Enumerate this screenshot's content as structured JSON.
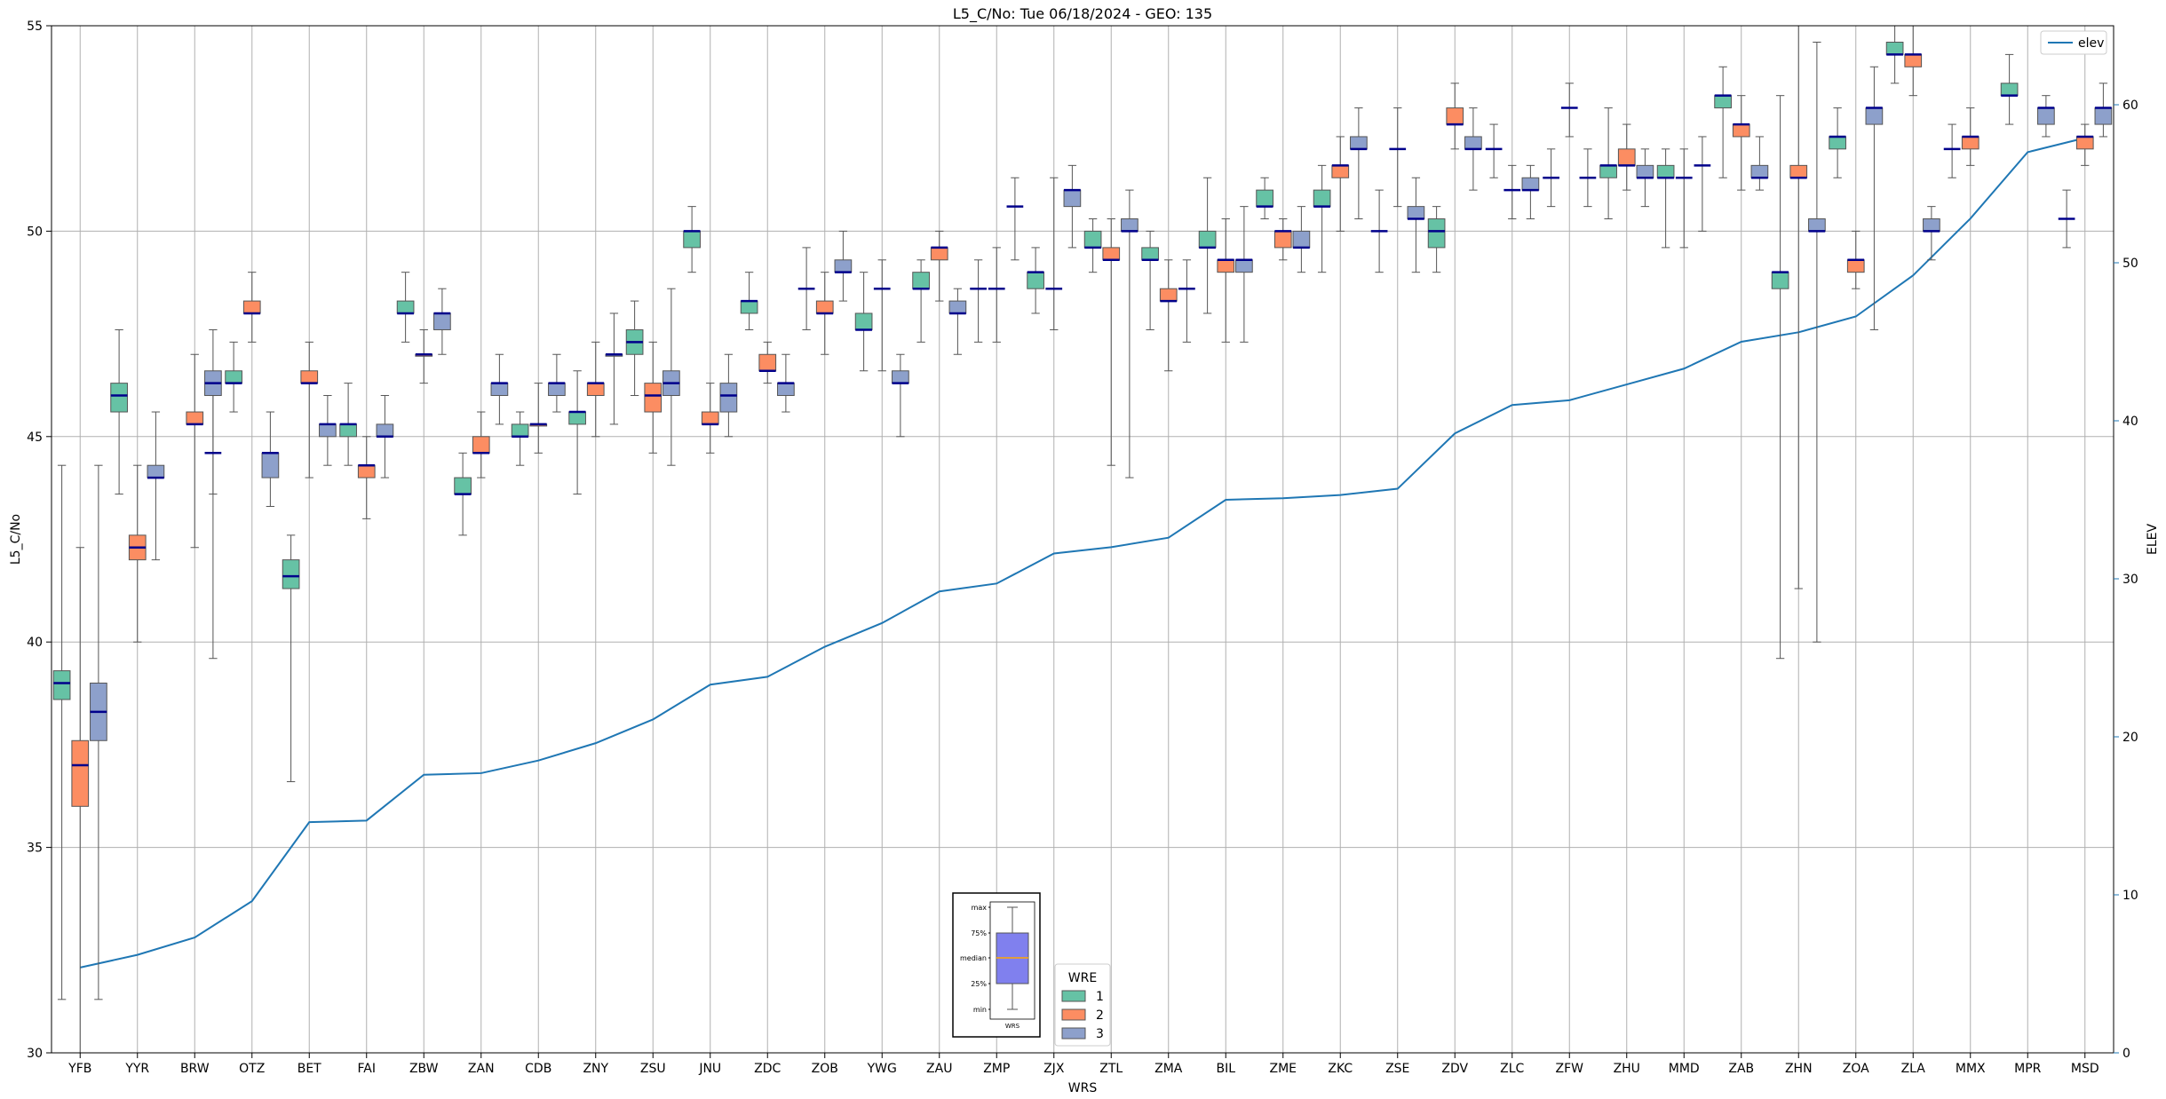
{
  "chart_data": {
    "type": "box",
    "title": "L5_C/No: Tue 06/18/2024 - GEO: 135",
    "xlabel": "WRS",
    "ylabel": "L5_C/No",
    "y2label": "ELEV",
    "ylim": [
      30,
      55
    ],
    "y2lim": [
      0,
      65
    ],
    "yticks": [
      30,
      35,
      40,
      45,
      50,
      55
    ],
    "y2ticks": [
      0,
      10,
      20,
      30,
      40,
      50,
      60
    ],
    "grid": true,
    "categories": [
      "YFB",
      "YYR",
      "BRW",
      "OTZ",
      "BET",
      "FAI",
      "ZBW",
      "ZAN",
      "CDB",
      "ZNY",
      "ZSU",
      "JNU",
      "ZDC",
      "ZOB",
      "YWG",
      "ZAU",
      "ZMP",
      "ZJX",
      "ZTL",
      "ZMA",
      "BIL",
      "ZME",
      "ZKC",
      "ZSE",
      "ZDV",
      "ZLC",
      "ZFW",
      "ZHU",
      "MMD",
      "ZAB",
      "ZHN",
      "ZOA",
      "ZLA",
      "MMX",
      "MPR",
      "MSD"
    ],
    "wre_colors": {
      "1": "#66c2a5",
      "2": "#fc8d62",
      "3": "#8da0cb"
    },
    "median_color": "#00008b",
    "boxes": [
      {
        "site": "YFB",
        "wre": 1,
        "min": 31.3,
        "q1": 38.6,
        "median": 39.0,
        "q3": 39.3,
        "max": 44.3
      },
      {
        "site": "YFB",
        "wre": 2,
        "min": 30.0,
        "q1": 36.0,
        "median": 37.0,
        "q3": 37.6,
        "max": 42.3
      },
      {
        "site": "YFB",
        "wre": 3,
        "min": 31.3,
        "q1": 37.6,
        "median": 38.3,
        "q3": 39.0,
        "max": 44.3
      },
      {
        "site": "YYR",
        "wre": 1,
        "min": 43.6,
        "q1": 45.6,
        "median": 46.0,
        "q3": 46.3,
        "max": 47.6
      },
      {
        "site": "YYR",
        "wre": 2,
        "min": 40.0,
        "q1": 42.0,
        "median": 42.3,
        "q3": 42.6,
        "max": 44.3
      },
      {
        "site": "YYR",
        "wre": 3,
        "min": 42.0,
        "q1": 44.0,
        "median": 44.0,
        "q3": 44.3,
        "max": 45.6
      },
      {
        "site": "BRW",
        "wre": 2,
        "min": 42.3,
        "q1": 45.3,
        "median": 45.3,
        "q3": 45.6,
        "max": 47.0
      },
      {
        "site": "BRW",
        "wre": 3,
        "min": 43.6,
        "q1": 46.0,
        "median": 46.3,
        "q3": 46.6,
        "max": 47.6
      },
      {
        "site": "BRW",
        "wre": 0,
        "min": 39.6,
        "q1": 44.6,
        "median": 44.6,
        "q3": 44.6,
        "max": 46.0
      },
      {
        "site": "OTZ",
        "wre": 1,
        "min": 45.6,
        "q1": 46.3,
        "median": 46.3,
        "q3": 46.6,
        "max": 47.3
      },
      {
        "site": "OTZ",
        "wre": 2,
        "min": 47.3,
        "q1": 48.0,
        "median": 48.0,
        "q3": 48.3,
        "max": 49.0
      },
      {
        "site": "OTZ",
        "wre": 3,
        "min": 43.3,
        "q1": 44.0,
        "median": 44.6,
        "q3": 44.6,
        "max": 45.6
      },
      {
        "site": "BET",
        "wre": 1,
        "min": 36.6,
        "q1": 41.3,
        "median": 41.6,
        "q3": 42.0,
        "max": 42.6
      },
      {
        "site": "BET",
        "wre": 2,
        "min": 44.0,
        "q1": 46.3,
        "median": 46.3,
        "q3": 46.6,
        "max": 47.3
      },
      {
        "site": "BET",
        "wre": 3,
        "min": 44.3,
        "q1": 45.0,
        "median": 45.3,
        "q3": 45.3,
        "max": 46.0
      },
      {
        "site": "FAI",
        "wre": 1,
        "min": 44.3,
        "q1": 45.0,
        "median": 45.3,
        "q3": 45.3,
        "max": 46.3
      },
      {
        "site": "FAI",
        "wre": 2,
        "min": 43.0,
        "q1": 44.0,
        "median": 44.3,
        "q3": 44.3,
        "max": 45.0
      },
      {
        "site": "FAI",
        "wre": 3,
        "min": 44.0,
        "q1": 45.0,
        "median": 45.0,
        "q3": 45.3,
        "max": 46.0
      },
      {
        "site": "ZBW",
        "wre": 1,
        "min": 47.3,
        "q1": 48.0,
        "median": 48.0,
        "q3": 48.3,
        "max": 49.0
      },
      {
        "site": "ZBW",
        "wre": 2,
        "min": 46.3,
        "q1": 47.0,
        "median": 47.0,
        "q3": 47.0,
        "max": 47.6
      },
      {
        "site": "ZBW",
        "wre": 3,
        "min": 47.0,
        "q1": 47.6,
        "median": 48.0,
        "q3": 48.0,
        "max": 48.6
      },
      {
        "site": "ZAN",
        "wre": 1,
        "min": 42.6,
        "q1": 43.6,
        "median": 43.6,
        "q3": 44.0,
        "max": 44.6
      },
      {
        "site": "ZAN",
        "wre": 2,
        "min": 44.0,
        "q1": 44.6,
        "median": 44.6,
        "q3": 45.0,
        "max": 45.6
      },
      {
        "site": "ZAN",
        "wre": 3,
        "min": 45.3,
        "q1": 46.0,
        "median": 46.3,
        "q3": 46.3,
        "max": 47.0
      },
      {
        "site": "CDB",
        "wre": 1,
        "min": 44.3,
        "q1": 45.0,
        "median": 45.0,
        "q3": 45.3,
        "max": 45.6
      },
      {
        "site": "CDB",
        "wre": 2,
        "min": 44.6,
        "q1": 45.3,
        "median": 45.3,
        "q3": 45.3,
        "max": 46.3
      },
      {
        "site": "CDB",
        "wre": 3,
        "min": 45.6,
        "q1": 46.0,
        "median": 46.3,
        "q3": 46.3,
        "max": 47.0
      },
      {
        "site": "ZNY",
        "wre": 1,
        "min": 43.6,
        "q1": 45.3,
        "median": 45.6,
        "q3": 45.6,
        "max": 46.6
      },
      {
        "site": "ZNY",
        "wre": 2,
        "min": 45.0,
        "q1": 46.0,
        "median": 46.3,
        "q3": 46.3,
        "max": 47.3
      },
      {
        "site": "ZNY",
        "wre": 3,
        "min": 45.3,
        "q1": 47.0,
        "median": 47.0,
        "q3": 47.0,
        "max": 48.0
      },
      {
        "site": "ZSU",
        "wre": 1,
        "min": 46.0,
        "q1": 47.0,
        "median": 47.3,
        "q3": 47.6,
        "max": 48.3
      },
      {
        "site": "ZSU",
        "wre": 2,
        "min": 44.6,
        "q1": 45.6,
        "median": 46.0,
        "q3": 46.3,
        "max": 47.3
      },
      {
        "site": "ZSU",
        "wre": 3,
        "min": 44.3,
        "q1": 46.0,
        "median": 46.3,
        "q3": 46.6,
        "max": 48.6
      },
      {
        "site": "JNU",
        "wre": 1,
        "min": 49.0,
        "q1": 49.6,
        "median": 50.0,
        "q3": 50.0,
        "max": 50.6
      },
      {
        "site": "JNU",
        "wre": 2,
        "min": 44.6,
        "q1": 45.3,
        "median": 45.3,
        "q3": 45.6,
        "max": 46.3
      },
      {
        "site": "JNU",
        "wre": 3,
        "min": 45.0,
        "q1": 45.6,
        "median": 46.0,
        "q3": 46.3,
        "max": 47.0
      },
      {
        "site": "ZDC",
        "wre": 1,
        "min": 47.6,
        "q1": 48.0,
        "median": 48.3,
        "q3": 48.3,
        "max": 49.0
      },
      {
        "site": "ZDC",
        "wre": 2,
        "min": 46.3,
        "q1": 46.6,
        "median": 46.6,
        "q3": 47.0,
        "max": 47.3
      },
      {
        "site": "ZDC",
        "wre": 3,
        "min": 45.6,
        "q1": 46.0,
        "median": 46.3,
        "q3": 46.3,
        "max": 47.0
      },
      {
        "site": "ZOB",
        "wre": 0,
        "min": 47.6,
        "q1": 48.6,
        "median": 48.6,
        "q3": 48.6,
        "max": 49.6
      },
      {
        "site": "ZOB",
        "wre": 2,
        "min": 47.0,
        "q1": 48.0,
        "median": 48.0,
        "q3": 48.3,
        "max": 49.0
      },
      {
        "site": "ZOB",
        "wre": 3,
        "min": 48.3,
        "q1": 49.0,
        "median": 49.0,
        "q3": 49.3,
        "max": 50.0
      },
      {
        "site": "YWG",
        "wre": 1,
        "min": 46.6,
        "q1": 47.6,
        "median": 47.6,
        "q3": 48.0,
        "max": 49.0
      },
      {
        "site": "YWG",
        "wre": 0,
        "min": 46.6,
        "q1": 48.6,
        "median": 48.6,
        "q3": 48.6,
        "max": 49.3
      },
      {
        "site": "YWG",
        "wre": 3,
        "min": 45.0,
        "q1": 46.3,
        "median": 46.3,
        "q3": 46.6,
        "max": 47.0
      },
      {
        "site": "ZAU",
        "wre": 1,
        "min": 47.3,
        "q1": 48.6,
        "median": 48.6,
        "q3": 49.0,
        "max": 49.3
      },
      {
        "site": "ZAU",
        "wre": 2,
        "min": 48.3,
        "q1": 49.3,
        "median": 49.6,
        "q3": 49.6,
        "max": 50.0
      },
      {
        "site": "ZAU",
        "wre": 3,
        "min": 47.0,
        "q1": 48.0,
        "median": 48.0,
        "q3": 48.3,
        "max": 48.6
      },
      {
        "site": "ZMP",
        "wre": 0,
        "min": 47.3,
        "q1": 48.6,
        "median": 48.6,
        "q3": 48.6,
        "max": 49.3
      },
      {
        "site": "ZMP",
        "wre": 0,
        "min": 47.3,
        "q1": 48.6,
        "median": 48.6,
        "q3": 48.6,
        "max": 49.6
      },
      {
        "site": "ZMP",
        "wre": 0,
        "min": 49.3,
        "q1": 50.6,
        "median": 50.6,
        "q3": 50.6,
        "max": 51.3
      },
      {
        "site": "ZJX",
        "wre": 1,
        "min": 48.0,
        "q1": 48.6,
        "median": 49.0,
        "q3": 49.0,
        "max": 49.6
      },
      {
        "site": "ZJX",
        "wre": 0,
        "min": 47.6,
        "q1": 48.6,
        "median": 48.6,
        "q3": 48.6,
        "max": 51.3
      },
      {
        "site": "ZJX",
        "wre": 3,
        "min": 49.6,
        "q1": 50.6,
        "median": 51.0,
        "q3": 51.0,
        "max": 51.6
      },
      {
        "site": "ZTL",
        "wre": 1,
        "min": 49.0,
        "q1": 49.6,
        "median": 49.6,
        "q3": 50.0,
        "max": 50.3
      },
      {
        "site": "ZTL",
        "wre": 2,
        "min": 44.3,
        "q1": 49.3,
        "median": 49.3,
        "q3": 49.6,
        "max": 50.3
      },
      {
        "site": "ZTL",
        "wre": 3,
        "min": 44.0,
        "q1": 50.0,
        "median": 50.0,
        "q3": 50.3,
        "max": 51.0
      },
      {
        "site": "ZMA",
        "wre": 1,
        "min": 47.6,
        "q1": 49.3,
        "median": 49.3,
        "q3": 49.6,
        "max": 50.0
      },
      {
        "site": "ZMA",
        "wre": 2,
        "min": 46.6,
        "q1": 48.3,
        "median": 48.3,
        "q3": 48.6,
        "max": 49.3
      },
      {
        "site": "ZMA",
        "wre": 0,
        "min": 47.3,
        "q1": 48.6,
        "median": 48.6,
        "q3": 48.6,
        "max": 49.3
      },
      {
        "site": "BIL",
        "wre": 1,
        "min": 48.0,
        "q1": 49.6,
        "median": 49.6,
        "q3": 50.0,
        "max": 51.3
      },
      {
        "site": "BIL",
        "wre": 2,
        "min": 47.3,
        "q1": 49.0,
        "median": 49.3,
        "q3": 49.3,
        "max": 50.3
      },
      {
        "site": "BIL",
        "wre": 3,
        "min": 47.3,
        "q1": 49.0,
        "median": 49.3,
        "q3": 49.3,
        "max": 50.6
      },
      {
        "site": "ZME",
        "wre": 1,
        "min": 50.3,
        "q1": 50.6,
        "median": 50.6,
        "q3": 51.0,
        "max": 51.3
      },
      {
        "site": "ZME",
        "wre": 2,
        "min": 49.3,
        "q1": 49.6,
        "median": 50.0,
        "q3": 50.0,
        "max": 50.3
      },
      {
        "site": "ZME",
        "wre": 3,
        "min": 49.0,
        "q1": 49.6,
        "median": 49.6,
        "q3": 50.0,
        "max": 50.6
      },
      {
        "site": "ZKC",
        "wre": 1,
        "min": 49.0,
        "q1": 50.6,
        "median": 50.6,
        "q3": 51.0,
        "max": 51.6
      },
      {
        "site": "ZKC",
        "wre": 2,
        "min": 50.0,
        "q1": 51.3,
        "median": 51.6,
        "q3": 51.6,
        "max": 52.3
      },
      {
        "site": "ZKC",
        "wre": 3,
        "min": 50.3,
        "q1": 52.0,
        "median": 52.0,
        "q3": 52.3,
        "max": 53.0
      },
      {
        "site": "ZSE",
        "wre": 0,
        "min": 49.0,
        "q1": 50.0,
        "median": 50.0,
        "q3": 50.0,
        "max": 51.0
      },
      {
        "site": "ZSE",
        "wre": 0,
        "min": 50.6,
        "q1": 52.0,
        "median": 52.0,
        "q3": 52.0,
        "max": 53.0
      },
      {
        "site": "ZSE",
        "wre": 3,
        "min": 49.0,
        "q1": 50.3,
        "median": 50.3,
        "q3": 50.6,
        "max": 51.3
      },
      {
        "site": "ZDV",
        "wre": 1,
        "min": 49.0,
        "q1": 49.6,
        "median": 50.0,
        "q3": 50.3,
        "max": 50.6
      },
      {
        "site": "ZDV",
        "wre": 2,
        "min": 52.0,
        "q1": 52.6,
        "median": 52.6,
        "q3": 53.0,
        "max": 53.6
      },
      {
        "site": "ZDV",
        "wre": 3,
        "min": 51.0,
        "q1": 52.0,
        "median": 52.0,
        "q3": 52.3,
        "max": 53.0
      },
      {
        "site": "ZLC",
        "wre": 0,
        "min": 51.3,
        "q1": 52.0,
        "median": 52.0,
        "q3": 52.0,
        "max": 52.6
      },
      {
        "site": "ZLC",
        "wre": 0,
        "min": 50.3,
        "q1": 51.0,
        "median": 51.0,
        "q3": 51.0,
        "max": 51.6
      },
      {
        "site": "ZLC",
        "wre": 3,
        "min": 50.3,
        "q1": 51.0,
        "median": 51.0,
        "q3": 51.3,
        "max": 51.6
      },
      {
        "site": "ZFW",
        "wre": 0,
        "min": 50.6,
        "q1": 51.3,
        "median": 51.3,
        "q3": 51.3,
        "max": 52.0
      },
      {
        "site": "ZFW",
        "wre": 0,
        "min": 52.3,
        "q1": 53.0,
        "median": 53.0,
        "q3": 53.0,
        "max": 53.6
      },
      {
        "site": "ZFW",
        "wre": 0,
        "min": 50.6,
        "q1": 51.3,
        "median": 51.3,
        "q3": 51.3,
        "max": 52.0
      },
      {
        "site": "ZHU",
        "wre": 1,
        "min": 50.3,
        "q1": 51.3,
        "median": 51.6,
        "q3": 51.6,
        "max": 53.0
      },
      {
        "site": "ZHU",
        "wre": 2,
        "min": 51.0,
        "q1": 51.6,
        "median": 51.6,
        "q3": 52.0,
        "max": 52.6
      },
      {
        "site": "ZHU",
        "wre": 3,
        "min": 50.6,
        "q1": 51.3,
        "median": 51.3,
        "q3": 51.6,
        "max": 52.0
      },
      {
        "site": "MMD",
        "wre": 1,
        "min": 49.6,
        "q1": 51.3,
        "median": 51.3,
        "q3": 51.6,
        "max": 52.0
      },
      {
        "site": "MMD",
        "wre": 0,
        "min": 49.6,
        "q1": 51.3,
        "median": 51.3,
        "q3": 51.3,
        "max": 52.0
      },
      {
        "site": "MMD",
        "wre": 0,
        "min": 50.0,
        "q1": 51.6,
        "median": 51.6,
        "q3": 51.6,
        "max": 52.3
      },
      {
        "site": "ZAB",
        "wre": 1,
        "min": 51.3,
        "q1": 53.0,
        "median": 53.3,
        "q3": 53.3,
        "max": 54.0
      },
      {
        "site": "ZAB",
        "wre": 2,
        "min": 51.0,
        "q1": 52.3,
        "median": 52.6,
        "q3": 52.6,
        "max": 53.3
      },
      {
        "site": "ZAB",
        "wre": 3,
        "min": 51.0,
        "q1": 51.3,
        "median": 51.3,
        "q3": 51.6,
        "max": 52.3
      },
      {
        "site": "ZHN",
        "wre": 1,
        "min": 39.6,
        "q1": 48.6,
        "median": 49.0,
        "q3": 49.0,
        "max": 53.3
      },
      {
        "site": "ZHN",
        "wre": 2,
        "min": 41.3,
        "q1": 51.3,
        "median": 51.3,
        "q3": 51.6,
        "max": 55.0
      },
      {
        "site": "ZHN",
        "wre": 3,
        "min": 40.0,
        "q1": 50.0,
        "median": 50.0,
        "q3": 50.3,
        "max": 54.6
      },
      {
        "site": "ZOA",
        "wre": 2,
        "min": 48.6,
        "q1": 49.0,
        "median": 49.3,
        "q3": 49.3,
        "max": 50.0
      },
      {
        "site": "ZOA",
        "wre": 1,
        "min": 51.3,
        "q1": 52.0,
        "median": 52.3,
        "q3": 52.3,
        "max": 53.0
      },
      {
        "site": "ZOA",
        "wre": 3,
        "min": 47.6,
        "q1": 52.6,
        "median": 53.0,
        "q3": 53.0,
        "max": 54.0
      },
      {
        "site": "ZLA",
        "wre": 1,
        "min": 53.6,
        "q1": 54.3,
        "median": 54.3,
        "q3": 54.6,
        "max": 55.0
      },
      {
        "site": "ZLA",
        "wre": 2,
        "min": 53.3,
        "q1": 54.0,
        "median": 54.3,
        "q3": 54.3,
        "max": 55.0
      },
      {
        "site": "ZLA",
        "wre": 3,
        "min": 49.3,
        "q1": 50.0,
        "median": 50.0,
        "q3": 50.3,
        "max": 50.6
      },
      {
        "site": "MMX",
        "wre": 0,
        "min": 51.3,
        "q1": 52.0,
        "median": 52.0,
        "q3": 52.0,
        "max": 52.6
      },
      {
        "site": "MMX",
        "wre": 2,
        "min": 51.6,
        "q1": 52.0,
        "median": 52.3,
        "q3": 52.3,
        "max": 53.0
      },
      {
        "site": "MPR",
        "wre": 1,
        "min": 52.6,
        "q1": 53.3,
        "median": 53.3,
        "q3": 53.6,
        "max": 54.3
      },
      {
        "site": "MPR",
        "wre": 3,
        "min": 52.3,
        "q1": 52.6,
        "median": 53.0,
        "q3": 53.0,
        "max": 53.3
      },
      {
        "site": "MSD",
        "wre": 0,
        "min": 49.6,
        "q1": 50.3,
        "median": 50.3,
        "q3": 50.3,
        "max": 51.0
      },
      {
        "site": "MSD",
        "wre": 2,
        "min": 51.6,
        "q1": 52.0,
        "median": 52.3,
        "q3": 52.3,
        "max": 52.6
      },
      {
        "site": "MSD",
        "wre": 3,
        "min": 52.3,
        "q1": 52.6,
        "median": 53.0,
        "q3": 53.0,
        "max": 53.6
      }
    ],
    "elev_series": {
      "name": "elev",
      "color": "#1f77b4",
      "values": [
        5.4,
        6.2,
        7.3,
        9.6,
        14.6,
        14.7,
        17.6,
        17.7,
        18.5,
        19.6,
        21.1,
        23.3,
        23.8,
        25.7,
        27.2,
        29.2,
        29.7,
        31.6,
        32.0,
        32.6,
        35.0,
        35.1,
        35.3,
        35.7,
        39.2,
        41.0,
        41.3,
        42.3,
        43.3,
        45.0,
        45.6,
        46.6,
        49.2,
        52.8,
        57.0,
        57.9
      ]
    },
    "legend_elev": {
      "label": "elev",
      "placement": "top-right"
    },
    "legend_wre": {
      "title": "WRE",
      "entries": [
        "1",
        "2",
        "3"
      ],
      "placement": "bottom-center"
    },
    "key_inset": {
      "labels": [
        "max",
        "75%",
        "median",
        "25%",
        "min"
      ],
      "xlabel": "WRS",
      "box_color": "#8080ee",
      "median_color": "#ffa500",
      "placement": "bottom-center"
    }
  }
}
